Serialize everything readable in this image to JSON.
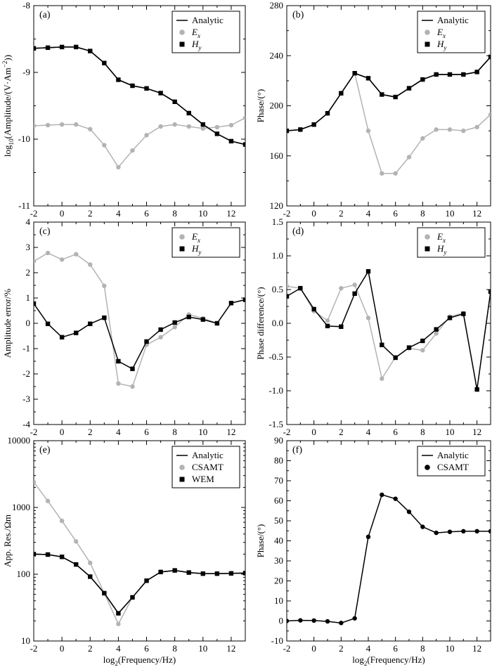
{
  "chart_data": [
    {
      "id": "a",
      "panel_label": "(a)",
      "type": "line",
      "ylabel": "log10(Amplitude/(V·Am⁻²))",
      "xlabel": "",
      "xlim": [
        -2,
        13
      ],
      "ylim": [
        -11,
        -8
      ],
      "xticks": [
        -2,
        0,
        2,
        4,
        6,
        8,
        10,
        12
      ],
      "yticks": [
        -11,
        -10,
        -9,
        -8
      ],
      "legend": "top-right",
      "series": [
        {
          "name": "Analytic",
          "style": "line",
          "color": "#000000",
          "x": [
            -2,
            -1,
            0,
            1,
            2,
            3,
            4,
            5,
            6,
            7,
            8,
            9,
            10,
            11,
            12,
            13
          ],
          "y": [
            -8.64,
            -8.63,
            -8.62,
            -8.62,
            -8.68,
            -8.86,
            -9.11,
            -9.2,
            -9.24,
            -9.31,
            -9.44,
            -9.61,
            -9.78,
            -9.92,
            -10.03,
            -10.08
          ]
        },
        {
          "name": "Ex",
          "style": "line-marker",
          "marker": "circle",
          "color": "#b3b3b3",
          "x": [
            -2,
            -1,
            0,
            1,
            2,
            3,
            4,
            5,
            6,
            7,
            8,
            9,
            10,
            11,
            12,
            13
          ],
          "y": [
            -9.8,
            -9.79,
            -9.78,
            -9.78,
            -9.85,
            -10.09,
            -10.42,
            -10.17,
            -9.94,
            -9.81,
            -9.78,
            -9.81,
            -9.84,
            -9.82,
            -9.79,
            -9.68
          ]
        },
        {
          "name": "Hy",
          "style": "line-marker",
          "marker": "square",
          "color": "#000000",
          "x": [
            -2,
            -1,
            0,
            1,
            2,
            3,
            4,
            5,
            6,
            7,
            8,
            9,
            10,
            11,
            12,
            13
          ],
          "y": [
            -8.64,
            -8.63,
            -8.62,
            -8.62,
            -8.68,
            -8.86,
            -9.11,
            -9.2,
            -9.24,
            -9.31,
            -9.44,
            -9.61,
            -9.78,
            -9.92,
            -10.03,
            -10.08
          ]
        }
      ]
    },
    {
      "id": "b",
      "panel_label": "(b)",
      "type": "line",
      "ylabel": "Phase/(°)",
      "xlabel": "",
      "xlim": [
        -2,
        13
      ],
      "ylim": [
        120,
        280
      ],
      "xticks": [
        -2,
        0,
        2,
        4,
        6,
        8,
        10,
        12
      ],
      "yticks": [
        120,
        160,
        200,
        240,
        280
      ],
      "legend": "top-right",
      "series": [
        {
          "name": "Analytic",
          "style": "line",
          "color": "#000000",
          "x": [
            -2,
            -1,
            0,
            1,
            2,
            3,
            4,
            5,
            6,
            7,
            8,
            9,
            10,
            11,
            12,
            13
          ],
          "y": [
            180,
            181,
            185,
            194,
            210,
            226,
            222,
            209,
            207,
            214,
            221,
            225,
            225,
            225,
            227,
            239
          ]
        },
        {
          "name": "Ex",
          "style": "line-marker",
          "marker": "circle",
          "color": "#b3b3b3",
          "x": [
            -2,
            -1,
            0,
            1,
            2,
            3,
            4,
            5,
            6,
            7,
            8,
            9,
            10,
            11,
            12,
            13
          ],
          "y": [
            180,
            181,
            185,
            194,
            210,
            226,
            180,
            146,
            146,
            159,
            174,
            181,
            181,
            180,
            183,
            193
          ]
        },
        {
          "name": "Hy",
          "style": "line-marker",
          "marker": "square",
          "color": "#000000",
          "x": [
            -2,
            -1,
            0,
            1,
            2,
            3,
            4,
            5,
            6,
            7,
            8,
            9,
            10,
            11,
            12,
            13
          ],
          "y": [
            180,
            181,
            185,
            194,
            210,
            226,
            222,
            209,
            207,
            214,
            221,
            225,
            225,
            225,
            227,
            239
          ]
        }
      ]
    },
    {
      "id": "c",
      "panel_label": "(c)",
      "type": "line",
      "ylabel": "Amplitude error/%",
      "xlabel": "",
      "xlim": [
        -2,
        13
      ],
      "ylim": [
        -4,
        4
      ],
      "xticks": [
        -2,
        0,
        2,
        4,
        6,
        8,
        10,
        12
      ],
      "yticks": [
        -4,
        -3,
        -2,
        -1,
        0,
        1,
        2,
        3,
        4
      ],
      "legend": "top-right",
      "series": [
        {
          "name": "Ex",
          "style": "line-marker",
          "marker": "circle",
          "color": "#b3b3b3",
          "x": [
            -2,
            -1,
            0,
            1,
            2,
            3,
            4,
            5,
            6,
            7,
            8,
            9,
            10,
            11,
            12,
            13
          ],
          "y": [
            2.45,
            2.78,
            2.52,
            2.73,
            2.32,
            1.48,
            -2.38,
            -2.5,
            -0.85,
            -0.55,
            -0.15,
            0.35,
            0.2,
            0.0,
            0.8,
            0.95
          ]
        },
        {
          "name": "Hy",
          "style": "line-marker",
          "marker": "square",
          "color": "#000000",
          "x": [
            -2,
            -1,
            0,
            1,
            2,
            3,
            4,
            5,
            6,
            7,
            8,
            9,
            10,
            11,
            12,
            13
          ],
          "y": [
            0.78,
            -0.02,
            -0.55,
            -0.38,
            -0.02,
            0.22,
            -1.5,
            -1.8,
            -0.72,
            -0.25,
            0.03,
            0.25,
            0.15,
            0.0,
            0.8,
            0.93
          ]
        }
      ]
    },
    {
      "id": "d",
      "panel_label": "(d)",
      "type": "line",
      "ylabel": "Phase difference/(°)",
      "xlabel": "",
      "xlim": [
        -2,
        13
      ],
      "ylim": [
        -1.5,
        1.5
      ],
      "xticks": [
        -2,
        0,
        2,
        4,
        6,
        8,
        10,
        12
      ],
      "yticks": [
        -1.5,
        -1.0,
        -0.5,
        0.0,
        0.5,
        1.0,
        1.5
      ],
      "legend": "top-right",
      "series": [
        {
          "name": "Ex",
          "style": "line-marker",
          "marker": "circle",
          "color": "#b3b3b3",
          "x": [
            -2,
            -1,
            0,
            1,
            2,
            3,
            4,
            5,
            6,
            7,
            8,
            9,
            10,
            11,
            12,
            13
          ],
          "y": [
            0.55,
            0.52,
            0.18,
            0.04,
            0.52,
            0.57,
            0.08,
            -0.82,
            -0.5,
            -0.37,
            -0.4,
            -0.15,
            0.1,
            0.15,
            -0.98,
            0.46
          ]
        },
        {
          "name": "Hy",
          "style": "line-marker",
          "marker": "square",
          "color": "#000000",
          "x": [
            -2,
            -1,
            0,
            1,
            2,
            3,
            4,
            5,
            6,
            7,
            8,
            9,
            10,
            11,
            12,
            13
          ],
          "y": [
            0.4,
            0.52,
            0.21,
            -0.04,
            -0.05,
            0.44,
            0.77,
            -0.32,
            -0.51,
            -0.36,
            -0.26,
            -0.09,
            0.08,
            0.14,
            -0.98,
            0.47
          ]
        }
      ]
    },
    {
      "id": "e",
      "panel_label": "(e)",
      "type": "line",
      "ylabel": "App. Res./Ωm",
      "xlabel": "log2(Frequency/Hz)",
      "yscale": "log",
      "xlim": [
        -2,
        13
      ],
      "ylim": [
        10,
        10000
      ],
      "xticks": [
        -2,
        0,
        2,
        4,
        6,
        8,
        10,
        12
      ],
      "yticks": [
        10,
        100,
        1000,
        10000
      ],
      "legend": "top-right",
      "series": [
        {
          "name": "Analytic",
          "style": "line",
          "color": "#000000",
          "x": [
            -2,
            -1,
            0,
            1,
            2,
            3,
            4,
            5,
            6,
            7,
            8,
            9,
            10,
            11,
            12,
            13
          ],
          "y": [
            200,
            197,
            182,
            140,
            92,
            52,
            26,
            45,
            80,
            108,
            114,
            106,
            102,
            102,
            103,
            104
          ]
        },
        {
          "name": "CSAMT",
          "style": "line-marker",
          "marker": "circle",
          "color": "#b3b3b3",
          "x": [
            -2,
            -1,
            0,
            1,
            2,
            3,
            4,
            5,
            6,
            7,
            8,
            9,
            10,
            11,
            12,
            13
          ],
          "y": [
            2400,
            1250,
            630,
            310,
            148,
            52,
            18,
            45,
            80,
            108,
            114,
            106,
            102,
            102,
            103,
            104
          ]
        },
        {
          "name": "WEM",
          "style": "line-marker",
          "marker": "square",
          "color": "#000000",
          "x": [
            -2,
            -1,
            0,
            1,
            2,
            3,
            4,
            5,
            6,
            7,
            8,
            9,
            10,
            11,
            12,
            13
          ],
          "y": [
            200,
            197,
            182,
            140,
            92,
            52,
            26,
            45,
            80,
            108,
            114,
            106,
            102,
            102,
            103,
            104
          ]
        }
      ]
    },
    {
      "id": "f",
      "panel_label": "(f)",
      "type": "line",
      "ylabel": "Phase/(°)",
      "xlabel": "log2(Frequency/Hz)",
      "xlim": [
        -2,
        13
      ],
      "ylim": [
        -10,
        90
      ],
      "xticks": [
        -2,
        0,
        2,
        4,
        6,
        8,
        10,
        12
      ],
      "yticks": [
        -10,
        0,
        10,
        20,
        30,
        40,
        50,
        60,
        70,
        80,
        90
      ],
      "legend": "top-right",
      "series": [
        {
          "name": "Analytic",
          "style": "line",
          "color": "#000000",
          "x": [
            -2,
            -1,
            0,
            1,
            2,
            3,
            4,
            5,
            6,
            7,
            8,
            9,
            10,
            11,
            12,
            13
          ],
          "y": [
            0,
            0.3,
            0.2,
            -0.2,
            -1,
            1.3,
            42,
            63,
            61,
            54.5,
            47,
            44,
            44.5,
            44.8,
            44.8,
            44.8
          ]
        },
        {
          "name": "CSAMT",
          "style": "marker",
          "marker": "circle",
          "color": "#000000",
          "x": [
            -2,
            -1,
            0,
            1,
            2,
            3,
            4,
            5,
            6,
            7,
            8,
            9,
            10,
            11,
            12,
            13
          ],
          "y": [
            0,
            0.3,
            0.2,
            -0.2,
            -1,
            1.3,
            42,
            63,
            61,
            54.5,
            47,
            44,
            44.5,
            44.8,
            44.8,
            44.8
          ]
        }
      ]
    }
  ]
}
